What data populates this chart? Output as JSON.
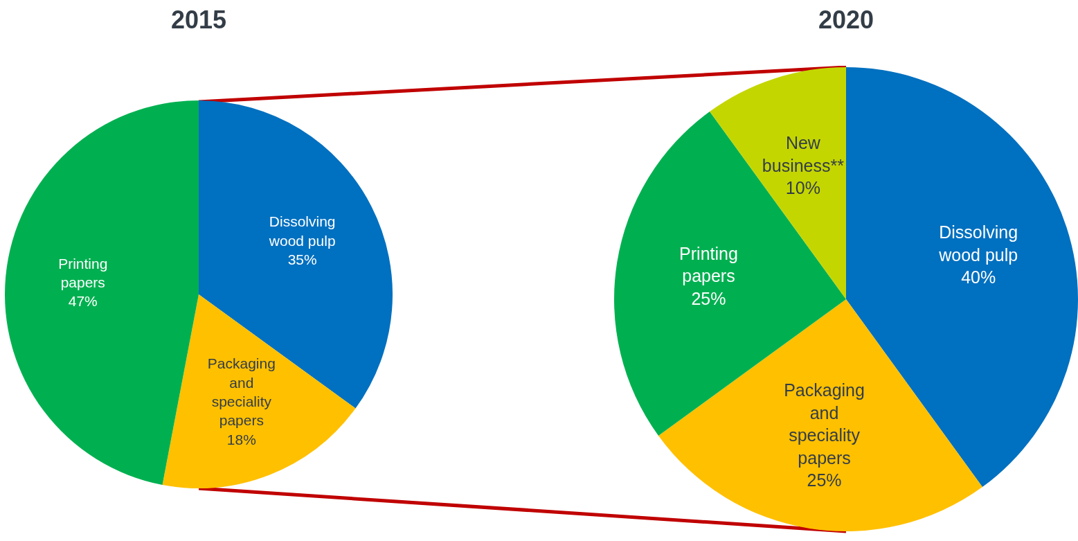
{
  "chart_data": [
    {
      "type": "pie",
      "title": "2015",
      "categories": [
        "Dissolving wood pulp",
        "Packaging and speciality papers",
        "Printing papers"
      ],
      "values": [
        35,
        18,
        47
      ],
      "colors": [
        "#0070c0",
        "#ffc000",
        "#00b050"
      ],
      "value_labels": [
        "35%",
        "18%",
        "47%"
      ],
      "legend": false
    },
    {
      "type": "pie",
      "title": "2020",
      "categories": [
        "Dissolving wood pulp",
        "Packaging and speciality papers",
        "Printing papers",
        "New business**"
      ],
      "values": [
        40,
        25,
        25,
        10
      ],
      "colors": [
        "#0070c0",
        "#ffc000",
        "#00b050",
        "#c4d600"
      ],
      "value_labels": [
        "40%",
        "25%",
        "25%",
        "10%"
      ],
      "legend": false
    }
  ]
}
